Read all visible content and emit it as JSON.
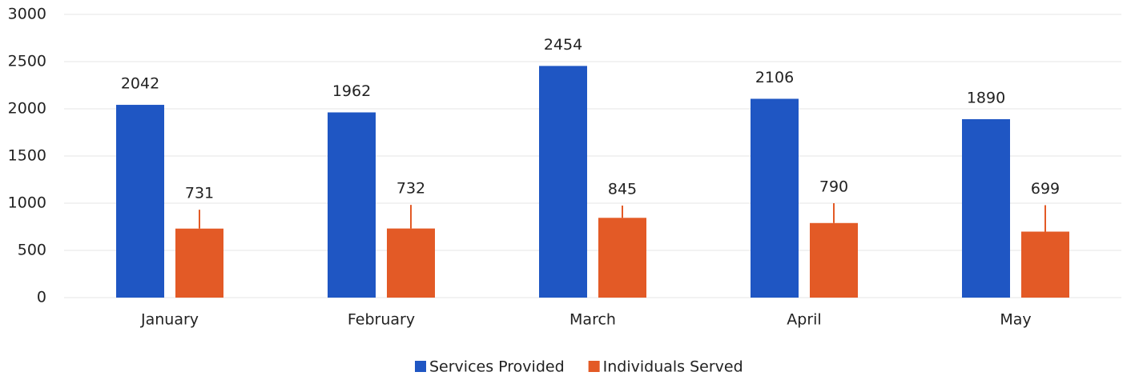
{
  "chart_data": {
    "type": "bar",
    "categories": [
      "January",
      "February",
      "March",
      "April",
      "May"
    ],
    "series": [
      {
        "name": "Services Provided",
        "color": "#1f56c3",
        "values": [
          2042,
          1962,
          2454,
          2106,
          1890
        ]
      },
      {
        "name": "Individuals Served",
        "color": "#e35a26",
        "values": [
          731,
          732,
          845,
          790,
          699
        ],
        "errors": [
          200,
          250,
          130,
          210,
          280
        ]
      }
    ],
    "ylim": [
      0,
      3000
    ],
    "yticks": [
      0,
      500,
      1000,
      1500,
      2000,
      2500,
      3000
    ],
    "grid": true,
    "legend": "bottom"
  }
}
